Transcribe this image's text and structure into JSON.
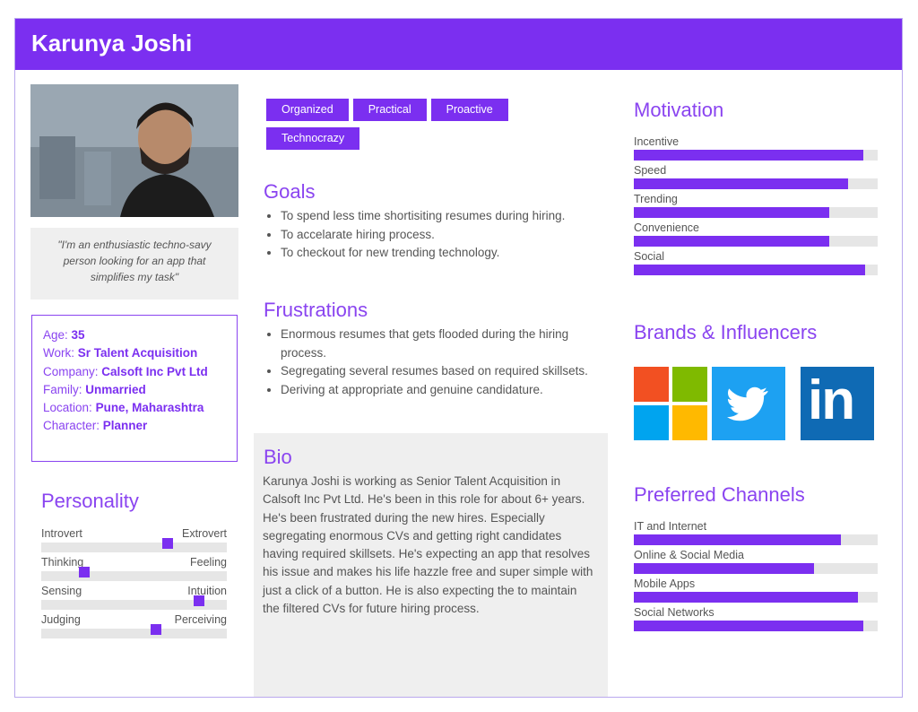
{
  "persona": {
    "name": "Karunya Joshi"
  },
  "quote": "\"I'm an enthusiastic techno-savy person looking for an app that simplifies my task\"",
  "info": {
    "age": {
      "label": "Age:",
      "value": "35"
    },
    "work": {
      "label": "Work:",
      "value": "Sr Talent Acquisition"
    },
    "company": {
      "label": "Company:",
      "value": "Calsoft Inc Pvt Ltd"
    },
    "family": {
      "label": "Family:",
      "value": "Unmarried"
    },
    "location": {
      "label": "Location:",
      "value": "Pune, Maharashtra"
    },
    "character": {
      "label": "Character:",
      "value": "Planner"
    }
  },
  "personality": {
    "title": "Personality",
    "traits": [
      {
        "left": "Introvert",
        "right": "Extrovert",
        "level": 0.68
      },
      {
        "left": "Thinking",
        "right": "Feeling",
        "level": 0.23
      },
      {
        "left": "Sensing",
        "right": "Intuition",
        "level": 0.85
      },
      {
        "left": "Judging",
        "right": "Perceiving",
        "level": 0.62
      }
    ]
  },
  "tags": [
    "Organized",
    "Practical",
    "Proactive",
    "Technocrazy"
  ],
  "goals": {
    "title": "Goals",
    "items": [
      "To spend less time shortisiting resumes during hiring.",
      "To accelarate hiring process.",
      "To checkout for new trending technology."
    ]
  },
  "frustrations": {
    "title": "Frustrations",
    "items": [
      "Enormous resumes that gets flooded during the hiring process.",
      "Segregating several resumes based on required skillsets.",
      "Deriving at appropriate and genuine candidature."
    ]
  },
  "bio": {
    "title": "Bio",
    "text": "Karunya Joshi is working as Senior Talent Acquisition in Calsoft Inc Pvt Ltd. He's been in this role for about 6+ years. He's been frustrated during the new hires. Especially segregating enormous CVs and getting right candidates having required skillsets. He's expecting an app that resolves his issue and makes his life hazzle free and super simple with just a click of a button. He is also expecting the to maintain the filtered CVs for future hiring process."
  },
  "motivation": {
    "title": "Motivation",
    "items": [
      {
        "label": "Incentive",
        "level": 0.94
      },
      {
        "label": "Speed",
        "level": 0.88
      },
      {
        "label": "Trending",
        "level": 0.8
      },
      {
        "label": "Convenience",
        "level": 0.8
      },
      {
        "label": "Social",
        "level": 0.95
      }
    ]
  },
  "brands": {
    "title": "Brands & Influencers",
    "logos": [
      "microsoft-logo",
      "twitter-logo",
      "linkedin-logo"
    ],
    "linkedin_text": "in"
  },
  "channels": {
    "title": "Preferred Channels",
    "items": [
      {
        "label": "IT and Internet",
        "level": 0.85
      },
      {
        "label": "Online & Social Media",
        "level": 0.74
      },
      {
        "label": "Mobile Apps",
        "level": 0.92
      },
      {
        "label": "Social Networks",
        "level": 0.94
      }
    ]
  },
  "colors": {
    "accent": "#7b2ff0",
    "track": "#e6e6e6",
    "panel": "#efefef"
  }
}
